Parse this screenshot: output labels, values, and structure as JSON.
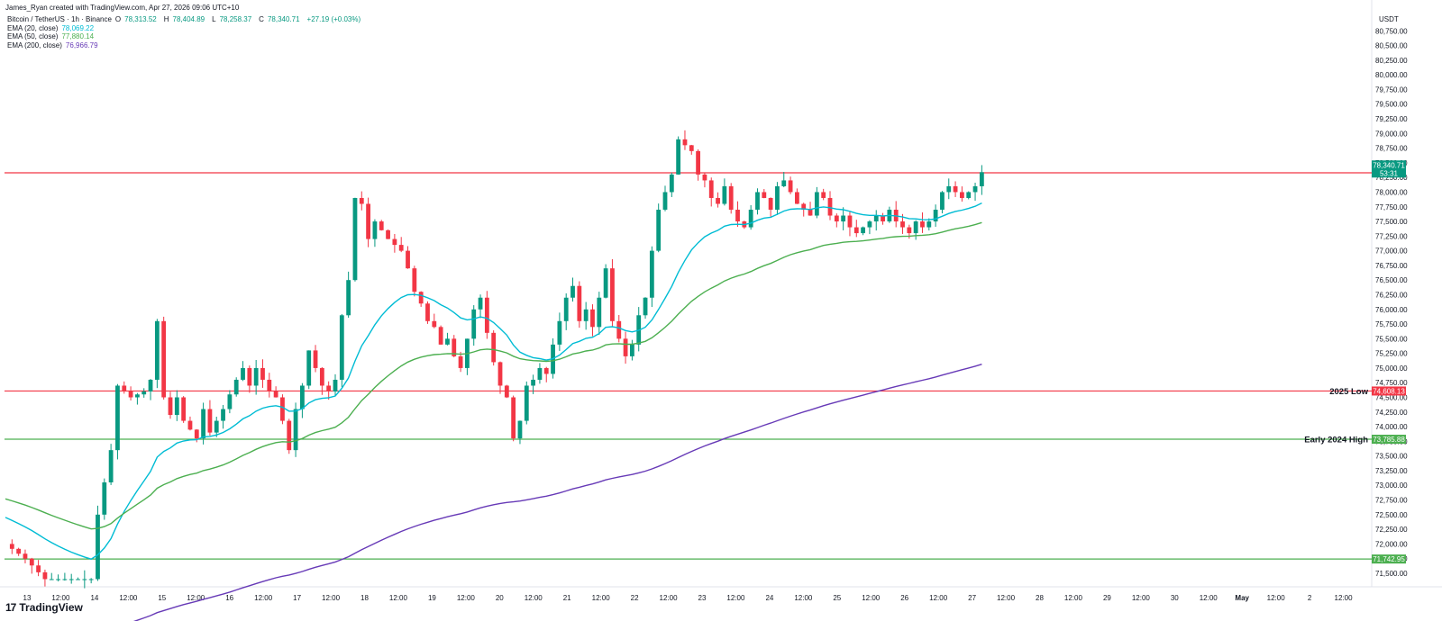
{
  "header": {
    "attribution": "James_Ryan created with TradingView.com, Apr 27, 2026 09:06 UTC+10"
  },
  "symbol": {
    "name": "Bitcoin / TetherUS · 1h · Binance",
    "open_label": "O",
    "open": "78,313.52",
    "high_label": "H",
    "high": "78,404.89",
    "low_label": "L",
    "low": "78,258.37",
    "close_label": "C",
    "close": "78,340.71",
    "change": "+27.19 (+0.03%)"
  },
  "indicators": [
    {
      "label": "EMA (20, close)",
      "value": "78,069.22",
      "color": "#00bcd4"
    },
    {
      "label": "EMA (50, close)",
      "value": "77,880.14",
      "color": "#4caf50"
    },
    {
      "label": "EMA (200, close)",
      "value": "76,966.79",
      "color": "#673ab7"
    }
  ],
  "brand": {
    "name": "TradingView"
  },
  "chart_data": {
    "type": "candlestick",
    "currency": "USDT",
    "ylim": [
      71300,
      81000
    ],
    "y_ticks": [
      71500,
      71750,
      72000,
      72250,
      72500,
      72750,
      73000,
      73250,
      73500,
      73750,
      74000,
      74250,
      74500,
      74750,
      75000,
      75250,
      75500,
      75750,
      76000,
      76250,
      76500,
      76750,
      77000,
      77250,
      77500,
      77750,
      78000,
      78250,
      78500,
      78750,
      79000,
      79250,
      79500,
      79750,
      80000,
      80250,
      80500,
      80750
    ],
    "x_ticks": [
      "13",
      "12:00",
      "14",
      "12:00",
      "15",
      "12:00",
      "16",
      "12:00",
      "17",
      "12:00",
      "18",
      "12:00",
      "19",
      "12:00",
      "20",
      "12:00",
      "21",
      "12:00",
      "22",
      "12:00",
      "23",
      "12:00",
      "24",
      "12:00",
      "25",
      "12:00",
      "26",
      "12:00",
      "27",
      "12:00",
      "28",
      "12:00",
      "29",
      "12:00",
      "30",
      "12:00",
      "May",
      "12:00",
      "2",
      "12:00"
    ],
    "key_points": [
      [
        0,
        72000
      ],
      [
        3,
        71750
      ],
      [
        6,
        71400
      ],
      [
        13,
        71400
      ],
      [
        14,
        72500
      ],
      [
        16,
        73600
      ],
      [
        17,
        74700
      ],
      [
        19,
        74500
      ],
      [
        21,
        74600
      ],
      [
        22,
        74800
      ],
      [
        23,
        75800
      ],
      [
        24,
        74500
      ],
      [
        25,
        74200
      ],
      [
        26,
        74500
      ],
      [
        27,
        74100
      ],
      [
        29,
        73800
      ],
      [
        30,
        74300
      ],
      [
        31,
        73900
      ],
      [
        33,
        74300
      ],
      [
        35,
        74800
      ],
      [
        36,
        75000
      ],
      [
        37,
        74700
      ],
      [
        38,
        75000
      ],
      [
        39,
        74800
      ],
      [
        40,
        74600
      ],
      [
        41,
        74500
      ],
      [
        42,
        74100
      ],
      [
        43,
        73600
      ],
      [
        44,
        74300
      ],
      [
        45,
        74700
      ],
      [
        46,
        75300
      ],
      [
        47,
        75000
      ],
      [
        48,
        74700
      ],
      [
        49,
        74600
      ],
      [
        50,
        74800
      ],
      [
        51,
        75900
      ],
      [
        52,
        76500
      ],
      [
        53,
        77900
      ],
      [
        54,
        77800
      ],
      [
        55,
        77200
      ],
      [
        56,
        77500
      ],
      [
        58,
        77200
      ],
      [
        60,
        77000
      ],
      [
        61,
        76700
      ],
      [
        62,
        76300
      ],
      [
        63,
        76100
      ],
      [
        64,
        75800
      ],
      [
        65,
        75700
      ],
      [
        66,
        75400
      ],
      [
        67,
        75500
      ],
      [
        68,
        75200
      ],
      [
        69,
        75000
      ],
      [
        70,
        75500
      ],
      [
        71,
        76000
      ],
      [
        72,
        76200
      ],
      [
        73,
        75600
      ],
      [
        74,
        75100
      ],
      [
        75,
        74700
      ],
      [
        76,
        74500
      ],
      [
        77,
        73800
      ],
      [
        78,
        74100
      ],
      [
        79,
        74700
      ],
      [
        80,
        74800
      ],
      [
        81,
        75000
      ],
      [
        82,
        74900
      ],
      [
        83,
        75400
      ],
      [
        84,
        75800
      ],
      [
        85,
        76200
      ],
      [
        86,
        76400
      ],
      [
        87,
        75800
      ],
      [
        88,
        76000
      ],
      [
        89,
        75700
      ],
      [
        90,
        76200
      ],
      [
        91,
        76700
      ],
      [
        92,
        75800
      ],
      [
        93,
        75500
      ],
      [
        94,
        75200
      ],
      [
        95,
        75400
      ],
      [
        96,
        75900
      ],
      [
        97,
        76200
      ],
      [
        98,
        77000
      ],
      [
        99,
        77700
      ],
      [
        100,
        78000
      ],
      [
        101,
        78300
      ],
      [
        102,
        78900
      ],
      [
        103,
        78800
      ],
      [
        104,
        78700
      ],
      [
        105,
        78300
      ],
      [
        106,
        78200
      ],
      [
        107,
        77900
      ],
      [
        108,
        77800
      ],
      [
        109,
        78100
      ],
      [
        110,
        77700
      ],
      [
        111,
        77500
      ],
      [
        112,
        77400
      ],
      [
        113,
        77700
      ],
      [
        114,
        78000
      ],
      [
        115,
        77900
      ],
      [
        116,
        77700
      ],
      [
        117,
        78100
      ],
      [
        118,
        78200
      ],
      [
        119,
        78000
      ],
      [
        120,
        77800
      ],
      [
        121,
        77700
      ],
      [
        122,
        77600
      ],
      [
        123,
        78000
      ],
      [
        124,
        77900
      ],
      [
        125,
        77600
      ],
      [
        126,
        77500
      ],
      [
        127,
        77600
      ],
      [
        128,
        77400
      ],
      [
        129,
        77300
      ],
      [
        130,
        77400
      ],
      [
        131,
        77500
      ],
      [
        132,
        77600
      ],
      [
        133,
        77500
      ],
      [
        134,
        77700
      ],
      [
        135,
        77500
      ],
      [
        136,
        77400
      ],
      [
        137,
        77300
      ],
      [
        138,
        77500
      ],
      [
        139,
        77400
      ],
      [
        140,
        77500
      ],
      [
        141,
        77700
      ],
      [
        142,
        78000
      ],
      [
        143,
        78100
      ],
      [
        144,
        78000
      ],
      [
        145,
        77900
      ],
      [
        146,
        78000
      ],
      [
        147,
        78100
      ],
      [
        148,
        78340
      ]
    ],
    "last_price": {
      "value": "78,340.71",
      "countdown": "53:31",
      "color": "#089981"
    },
    "horizontal_lines": [
      {
        "price": 78330,
        "price_label": "78,330.00",
        "name": "",
        "color": "#f23645"
      },
      {
        "price": 74608.13,
        "price_label": "74,608.13",
        "name": "2025 Low",
        "color": "#f23645"
      },
      {
        "price": 73785.88,
        "price_label": "73,785.88",
        "name": "Early 2024 High",
        "color": "#4caf50"
      },
      {
        "price": 71742.95,
        "price_label": "71,742.95",
        "name": "",
        "color": "#4caf50"
      }
    ],
    "colors": {
      "up": "#089981",
      "down": "#f23645",
      "ema20": "#00bcd4",
      "ema50": "#4caf50",
      "ema200": "#673ab7"
    }
  }
}
